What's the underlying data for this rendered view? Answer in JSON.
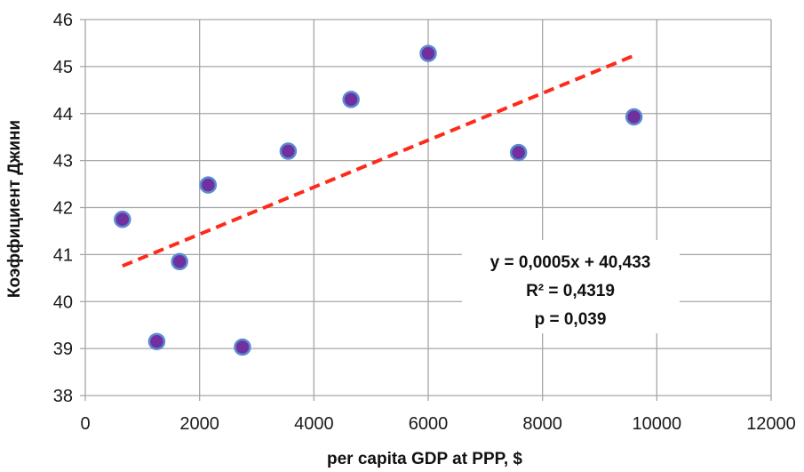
{
  "chart_data": {
    "type": "scatter",
    "title": "",
    "xlabel": "per capita GDP at PPP, $",
    "ylabel": "Коэффициент Джини",
    "xlim": [
      0,
      12000
    ],
    "ylim": [
      38,
      46
    ],
    "xticks": [
      0,
      2000,
      4000,
      6000,
      8000,
      10000,
      12000
    ],
    "yticks": [
      38,
      39,
      40,
      41,
      42,
      43,
      44,
      45,
      46
    ],
    "xtick_labels": [
      "0",
      "2000",
      "4000",
      "6000",
      "8000",
      "10000",
      "12000"
    ],
    "ytick_labels": [
      "38",
      "39",
      "40",
      "41",
      "42",
      "43",
      "44",
      "45",
      "46"
    ],
    "grid": true,
    "points": [
      {
        "x": 650,
        "y": 41.75
      },
      {
        "x": 1250,
        "y": 39.15
      },
      {
        "x": 1650,
        "y": 40.85
      },
      {
        "x": 2150,
        "y": 42.48
      },
      {
        "x": 2750,
        "y": 39.03
      },
      {
        "x": 3550,
        "y": 43.2
      },
      {
        "x": 4650,
        "y": 44.3
      },
      {
        "x": 6000,
        "y": 45.28
      },
      {
        "x": 7580,
        "y": 43.17
      },
      {
        "x": 9600,
        "y": 43.93
      }
    ],
    "trendline": {
      "slope": 0.0005,
      "intercept": 40.433,
      "x_range": [
        650,
        9600
      ]
    },
    "annotation": [
      "y = 0,0005x + 40,433",
      "R² = 0,4319",
      "p = 0,039"
    ],
    "colors": {
      "marker_fill": "#7030a0",
      "marker_stroke": "#5b8bd0",
      "trendline": "#ff2a1a",
      "grid": "#a6a6a6"
    }
  }
}
